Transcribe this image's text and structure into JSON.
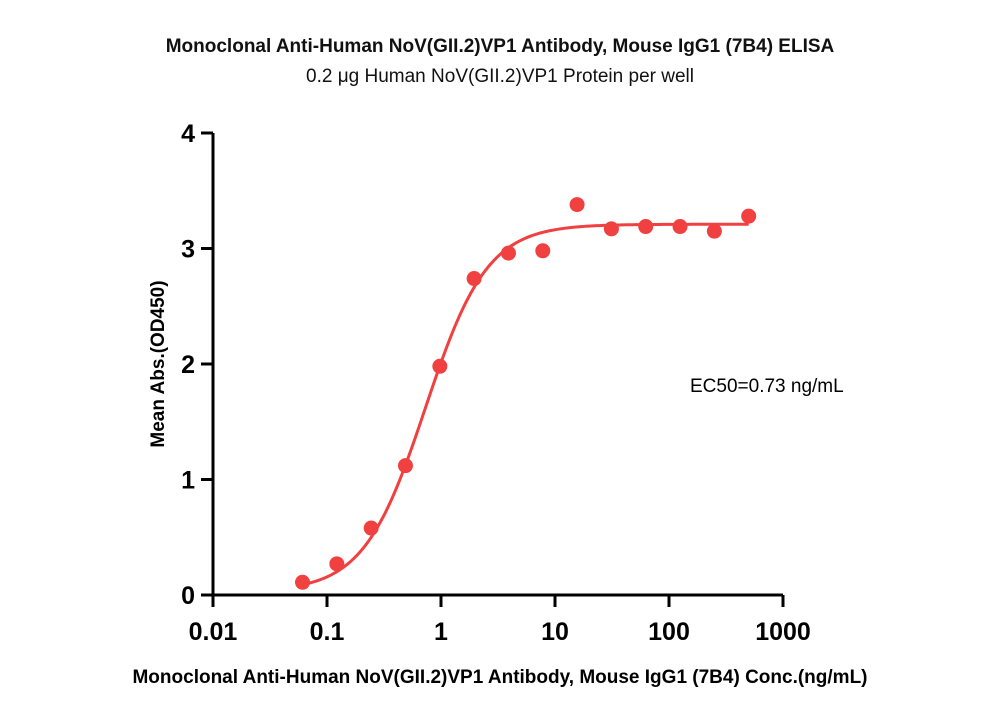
{
  "chart_data": {
    "type": "scatter",
    "title": "Monoclonal Anti-Human NoV(GII.2)VP1 Antibody, Mouse IgG1 (7B4) ELISA",
    "subtitle": "0.2 μg  Human NoV(GII.2)VP1 Protein per well",
    "xlabel": "Monoclonal Anti-Human NoV(GII.2)VP1 Antibody, Mouse IgG1 (7B4) Conc.(ng/mL)",
    "ylabel": "Mean Abs.(OD450)",
    "x_scale": "log",
    "xlim": [
      0.01,
      1000
    ],
    "ylim": [
      0,
      4
    ],
    "x_ticks": [
      0.01,
      0.1,
      1,
      10,
      100,
      1000
    ],
    "x_tick_labels": [
      "0.01",
      "0.1",
      "1",
      "10",
      "100",
      "1000"
    ],
    "y_ticks": [
      0,
      1,
      2,
      3,
      4
    ],
    "y_tick_labels": [
      "0",
      "1",
      "2",
      "3",
      "4"
    ],
    "grid": false,
    "series": [
      {
        "color": "#f04040",
        "x": [
          0.061,
          0.122,
          0.244,
          0.488,
          0.977,
          1.953,
          3.906,
          7.813,
          15.625,
          31.25,
          62.5,
          125,
          250,
          500
        ],
        "y": [
          0.11,
          0.27,
          0.58,
          1.12,
          1.98,
          2.74,
          2.96,
          2.98,
          3.38,
          3.17,
          3.19,
          3.19,
          3.15,
          3.28
        ]
      }
    ],
    "fit_curve": {
      "color": "#f04040",
      "model": "4PL",
      "bottom": 0.03,
      "top": 3.21,
      "ec50": 0.73,
      "hill": 1.6,
      "x_range": [
        0.061,
        500
      ]
    },
    "annotations": [
      {
        "text": "EC50=0.73 ng/mL"
      }
    ]
  }
}
